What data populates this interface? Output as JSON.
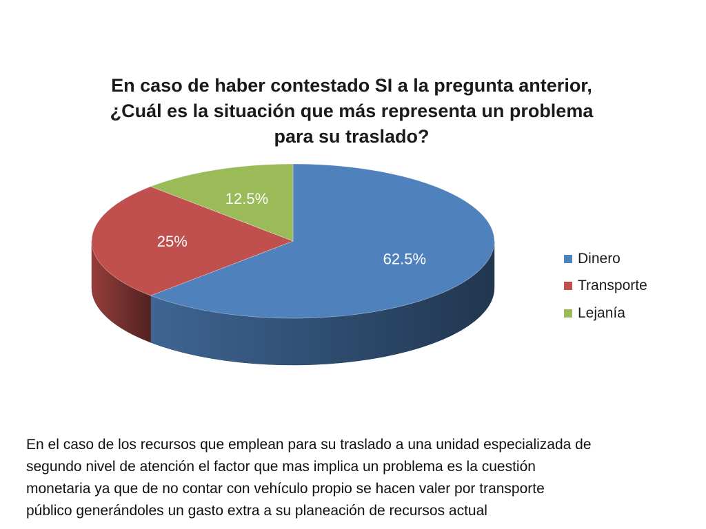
{
  "chart_data": {
    "type": "pie",
    "style": "3d",
    "title_lines": [
      "En caso de haber contestado SI a la pregunta anterior,",
      "¿Cuál es la situación que más representa un problema",
      "para su traslado?"
    ],
    "slices": [
      {
        "label": "Dinero",
        "value": 62.5,
        "data_label": "62.5%",
        "color": "#4f81bd"
      },
      {
        "label": "Transporte",
        "value": 25,
        "data_label": "25%",
        "color": "#c0504d"
      },
      {
        "label": "Lejanía",
        "value": 12.5,
        "data_label": "12.5%",
        "color": "#9bbb59"
      }
    ],
    "legend_position": "right"
  },
  "caption_lines": [
    "En el caso de los recursos que emplean para su traslado a una unidad especializada de",
    "segundo nivel de atención el factor que mas implica un problema es la cuestión",
    "monetaria ya que de no contar con vehículo propio se hacen valer por transporte",
    "público generándoles un gasto extra a su planeación de recursos actual"
  ]
}
